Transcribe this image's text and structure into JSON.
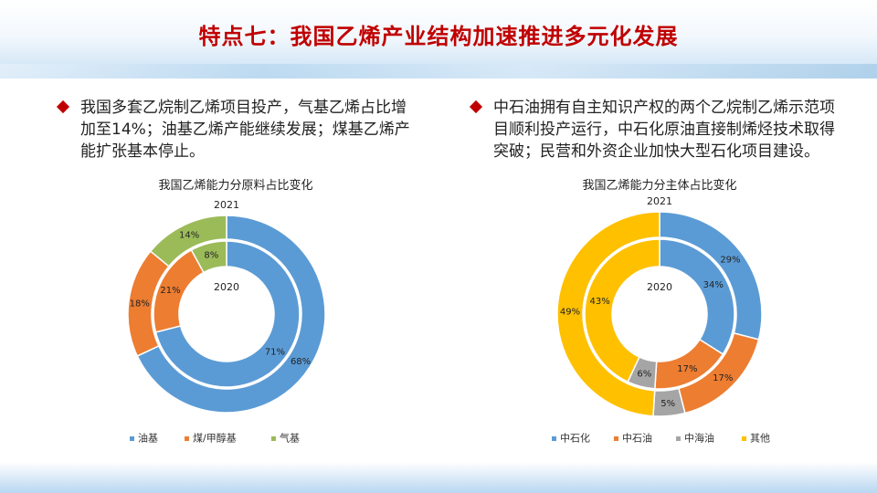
{
  "slide": {
    "title": "特点七：我国乙烯产业结构加速推进多元化发展"
  },
  "bullets": {
    "left": "我国多套乙烷制乙烯项目投产，气基乙烯占比增加至14%；油基乙烯产能继续发展；煤基乙烯产能扩张基本停止。",
    "right": "中石油拥有自主知识产权的两个乙烷制乙烯示范项目顺利投产运行，中石化原油直接制烯烃技术取得突破；民营和外资企业加快大型石化项目建设。"
  },
  "chart_data": [
    {
      "type": "donut",
      "title": "我国乙烯能力分原料占比变化",
      "outer_label": "2021",
      "inner_label": "2020",
      "categories": [
        "油基",
        "煤/甲醇基",
        "气基"
      ],
      "colors": [
        "#5b9bd5",
        "#ed7d31",
        "#9bbb59"
      ],
      "series": [
        {
          "name": "2021",
          "values": [
            68,
            18,
            14
          ]
        },
        {
          "name": "2020",
          "values": [
            71,
            21,
            8
          ]
        }
      ],
      "legend_position": "bottom"
    },
    {
      "type": "donut",
      "title": "我国乙烯能力分主体占比变化",
      "outer_label": "2021",
      "inner_label": "2020",
      "categories": [
        "中石化",
        "中石油",
        "中海油",
        "其他"
      ],
      "colors": [
        "#5b9bd5",
        "#ed7d31",
        "#a5a5a5",
        "#ffc000"
      ],
      "series": [
        {
          "name": "2021",
          "values": [
            29,
            17,
            5,
            49
          ]
        },
        {
          "name": "2020",
          "values": [
            34,
            17,
            6,
            43
          ]
        }
      ],
      "legend_position": "bottom"
    }
  ]
}
